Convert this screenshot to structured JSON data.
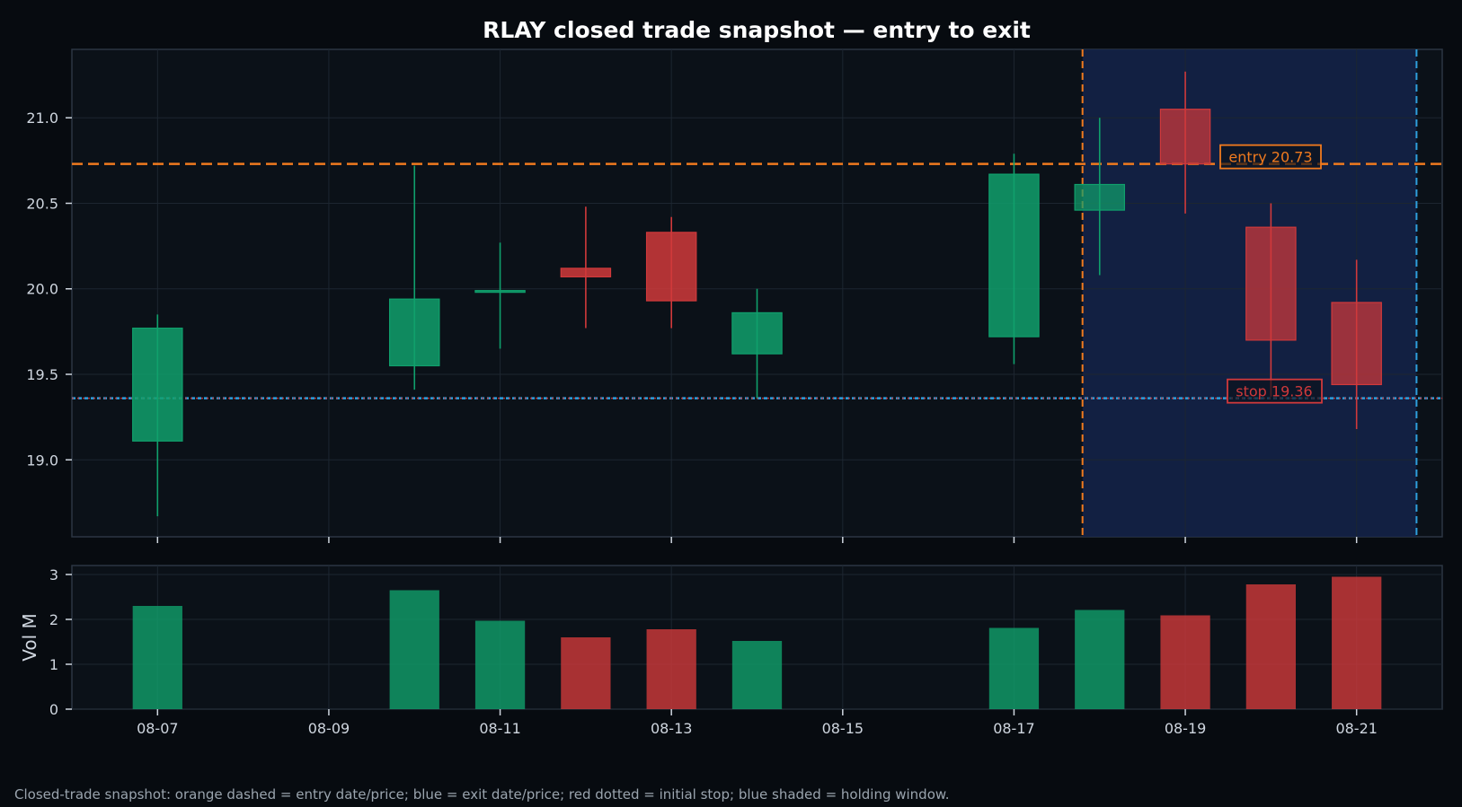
{
  "chart_data": {
    "type": "candlestick",
    "title": "RLAY closed trade snapshot — entry to exit",
    "ticker": "RLAY",
    "x_tick_labels": [
      "08-07",
      "08-09",
      "08-11",
      "08-13",
      "08-15",
      "08-17",
      "08-19",
      "08-21"
    ],
    "price_axis": {
      "ylim": [
        18.55,
        21.4
      ],
      "ticks": [
        19.0,
        19.5,
        20.0,
        20.5,
        21.0
      ]
    },
    "volume_axis": {
      "label": "Vol M",
      "ylim": [
        0,
        3.2
      ],
      "ticks": [
        0,
        1,
        2,
        3
      ]
    },
    "x_range": [
      "2024-08-06",
      "2024-08-22"
    ],
    "candles": [
      {
        "date": "2024-08-07",
        "open": 19.11,
        "high": 19.85,
        "low": 18.67,
        "close": 19.77,
        "volume": 2.3
      },
      {
        "date": "2024-08-10",
        "open": 19.55,
        "high": 20.72,
        "low": 19.41,
        "close": 19.94,
        "volume": 2.65
      },
      {
        "date": "2024-08-11",
        "open": 19.98,
        "high": 20.27,
        "low": 19.65,
        "close": 19.99,
        "volume": 1.97
      },
      {
        "date": "2024-08-12",
        "open": 20.12,
        "high": 20.48,
        "low": 19.77,
        "close": 20.07,
        "volume": 1.6
      },
      {
        "date": "2024-08-13",
        "open": 20.33,
        "high": 20.42,
        "low": 19.77,
        "close": 19.93,
        "volume": 1.78
      },
      {
        "date": "2024-08-14",
        "open": 19.62,
        "high": 20.0,
        "low": 19.36,
        "close": 19.86,
        "volume": 1.52
      },
      {
        "date": "2024-08-17",
        "open": 19.72,
        "high": 20.79,
        "low": 19.56,
        "close": 20.67,
        "volume": 1.81
      },
      {
        "date": "2024-08-18",
        "open": 20.46,
        "high": 21.0,
        "low": 20.08,
        "close": 20.61,
        "volume": 2.21
      },
      {
        "date": "2024-08-19",
        "open": 21.05,
        "high": 21.27,
        "low": 20.44,
        "close": 20.73,
        "volume": 2.09
      },
      {
        "date": "2024-08-20",
        "open": 20.36,
        "high": 20.5,
        "low": 19.37,
        "close": 19.7,
        "volume": 2.78
      },
      {
        "date": "2024-08-21",
        "open": 19.92,
        "high": 20.17,
        "low": 19.18,
        "close": 19.44,
        "volume": 2.95
      }
    ],
    "entry": {
      "date": "2024-08-17 19:12",
      "price": 20.73,
      "label": "entry 20.73"
    },
    "exit": {
      "date": "2024-08-21 16:48"
    },
    "stop": {
      "price": 19.36,
      "label": "stop 19.36"
    },
    "holding_window": [
      "2024-08-17 19:12",
      "2024-08-21 16:48"
    ],
    "colors": {
      "up": "#10a06c",
      "down": "#d0393b",
      "entry": "#f07a1e",
      "exit": "#2e9fdd",
      "stop": "#d0393b",
      "window": "#14234a",
      "background": "#070b10",
      "panel": "#0b1118"
    },
    "grid": true
  },
  "caption": "Closed-trade snapshot: orange dashed = entry date/price; blue = exit date/price; red dotted = initial stop; blue shaded = holding window."
}
